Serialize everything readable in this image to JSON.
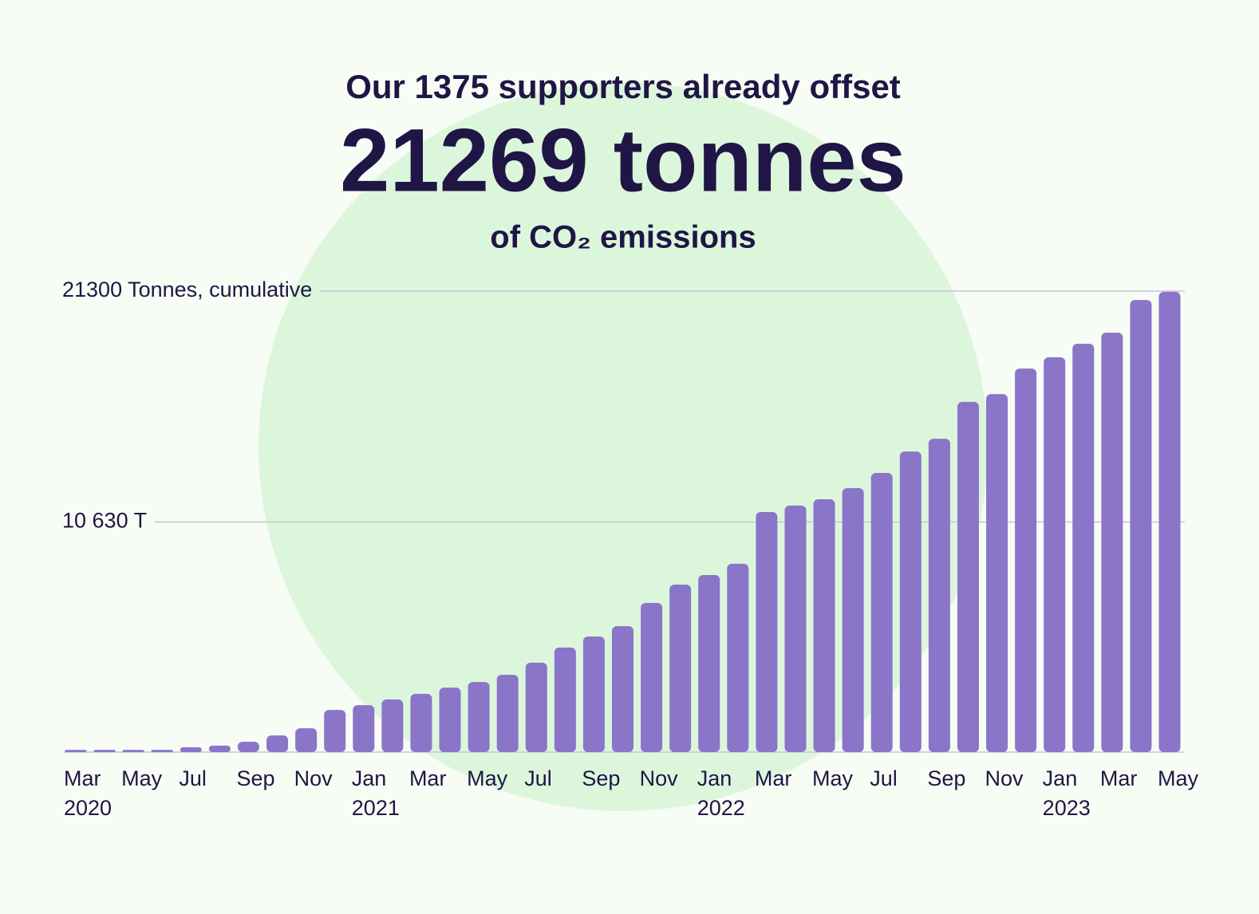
{
  "chart_data": {
    "type": "bar",
    "title": "Our 1375 supporters already offset",
    "headline": "21269 tonnes",
    "subtitle": "of CO₂ emissions",
    "categories": [
      "Mar",
      null,
      "May",
      null,
      "Jul",
      null,
      "Sep",
      null,
      "Nov",
      null,
      "Jan",
      null,
      "Mar",
      null,
      "May",
      null,
      "Jul",
      null,
      "Sep",
      null,
      "Nov",
      null,
      "Jan",
      null,
      "Mar",
      null,
      "May",
      null,
      "Jul",
      null,
      "Sep",
      null,
      "Nov",
      null,
      "Jan",
      null,
      "Mar",
      null,
      "May"
    ],
    "category_years": [
      "2020",
      null,
      null,
      null,
      null,
      null,
      null,
      null,
      null,
      null,
      "2021",
      null,
      null,
      null,
      null,
      null,
      null,
      null,
      null,
      null,
      null,
      null,
      "2022",
      null,
      null,
      null,
      null,
      null,
      null,
      null,
      null,
      null,
      null,
      null,
      "2023",
      null,
      null,
      null,
      null
    ],
    "values": [
      100,
      100,
      100,
      100,
      220,
      300,
      480,
      770,
      1100,
      1950,
      2170,
      2430,
      2690,
      2980,
      3240,
      3570,
      4130,
      4830,
      5340,
      5820,
      6890,
      7740,
      8180,
      8700,
      11090,
      11390,
      11680,
      12200,
      12900,
      13890,
      14480,
      16180,
      16540,
      17720,
      18240,
      18870,
      19380,
      20890,
      21269
    ],
    "color": "#8a75c9",
    "ylim": [
      0,
      21300
    ],
    "yticks": [
      {
        "value": 10630,
        "label": "10 630 T"
      },
      {
        "value": 21300,
        "label": "21300 Tonnes, cumulative"
      }
    ],
    "grid": true
  }
}
